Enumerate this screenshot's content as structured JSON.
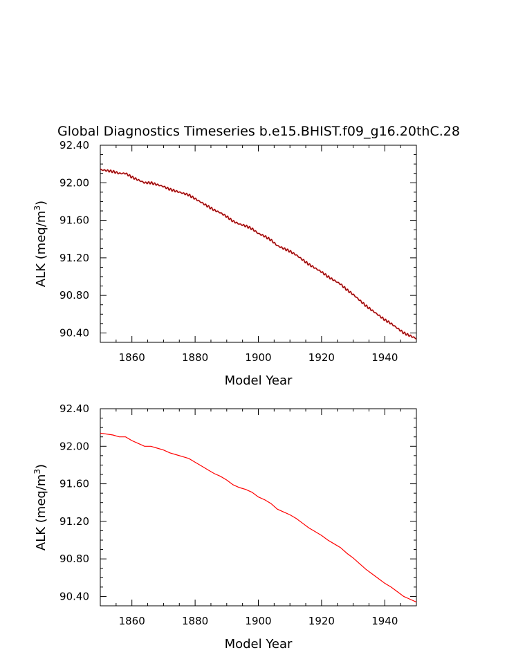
{
  "page_title": "Global Diagnostics Timeseries b.e15.BHIST.f09_g16.20thC.28",
  "chart_data": [
    {
      "type": "line",
      "title": "Global Diagnostics Timeseries b.e15.BHIST.f09_g16.20thC.28",
      "xlabel": "Model Year",
      "ylabel": "ALK (meq/m³)",
      "ylabel_main": "ALK (meq/m",
      "ylabel_sup": "3",
      "ylabel_tail": ")",
      "xlim": [
        1850,
        1950
      ],
      "ylim": [
        90.3,
        92.4
      ],
      "xticks": [
        "1860",
        "1880",
        "1900",
        "1920",
        "1940"
      ],
      "yticks": [
        "90.40",
        "90.80",
        "91.20",
        "91.60",
        "92.00",
        "92.40"
      ],
      "line_color": "#7a0000",
      "line_color_secondary": "#ff0000",
      "noisy": true,
      "grid": false,
      "legend": "none",
      "x": [
        1850,
        1852,
        1854,
        1856,
        1858,
        1860,
        1862,
        1864,
        1866,
        1868,
        1870,
        1872,
        1874,
        1876,
        1878,
        1880,
        1882,
        1884,
        1886,
        1888,
        1890,
        1892,
        1894,
        1896,
        1898,
        1900,
        1902,
        1904,
        1906,
        1908,
        1910,
        1912,
        1914,
        1916,
        1918,
        1920,
        1922,
        1924,
        1926,
        1928,
        1930,
        1932,
        1934,
        1936,
        1938,
        1940,
        1942,
        1944,
        1946,
        1948,
        1950
      ],
      "values": [
        92.14,
        92.13,
        92.12,
        92.1,
        92.1,
        92.06,
        92.03,
        92.0,
        92.0,
        91.98,
        91.96,
        91.93,
        91.91,
        91.89,
        91.87,
        91.83,
        91.79,
        91.75,
        91.71,
        91.68,
        91.64,
        91.59,
        91.56,
        91.54,
        91.51,
        91.46,
        91.43,
        91.39,
        91.33,
        91.3,
        91.27,
        91.23,
        91.18,
        91.13,
        91.09,
        91.05,
        91.0,
        90.96,
        90.92,
        90.86,
        90.81,
        90.75,
        90.69,
        90.64,
        90.59,
        90.54,
        90.5,
        90.45,
        90.4,
        90.37,
        90.34
      ]
    },
    {
      "type": "line",
      "xlabel": "Model Year",
      "ylabel": "ALK (meq/m³)",
      "ylabel_main": "ALK (meq/m",
      "ylabel_sup": "3",
      "ylabel_tail": ")",
      "xlim": [
        1850,
        1950
      ],
      "ylim": [
        90.3,
        92.4
      ],
      "xticks": [
        "1860",
        "1880",
        "1900",
        "1920",
        "1940"
      ],
      "yticks": [
        "90.40",
        "90.80",
        "91.20",
        "91.60",
        "92.00",
        "92.40"
      ],
      "line_color": "#ff0000",
      "noisy": false,
      "grid": false,
      "legend": "none",
      "x": [
        1850,
        1852,
        1854,
        1856,
        1858,
        1860,
        1862,
        1864,
        1866,
        1868,
        1870,
        1872,
        1874,
        1876,
        1878,
        1880,
        1882,
        1884,
        1886,
        1888,
        1890,
        1892,
        1894,
        1896,
        1898,
        1900,
        1902,
        1904,
        1906,
        1908,
        1910,
        1912,
        1914,
        1916,
        1918,
        1920,
        1922,
        1924,
        1926,
        1928,
        1930,
        1932,
        1934,
        1936,
        1938,
        1940,
        1942,
        1944,
        1946,
        1948,
        1950
      ],
      "values": [
        92.14,
        92.13,
        92.12,
        92.1,
        92.1,
        92.06,
        92.03,
        92.0,
        92.0,
        91.98,
        91.96,
        91.93,
        91.91,
        91.89,
        91.87,
        91.83,
        91.79,
        91.75,
        91.71,
        91.68,
        91.64,
        91.59,
        91.56,
        91.54,
        91.51,
        91.46,
        91.43,
        91.39,
        91.33,
        91.3,
        91.27,
        91.23,
        91.18,
        91.13,
        91.09,
        91.05,
        91.0,
        90.96,
        90.92,
        90.86,
        90.81,
        90.75,
        90.69,
        90.64,
        90.59,
        90.54,
        90.5,
        90.45,
        90.4,
        90.37,
        90.34
      ]
    }
  ]
}
